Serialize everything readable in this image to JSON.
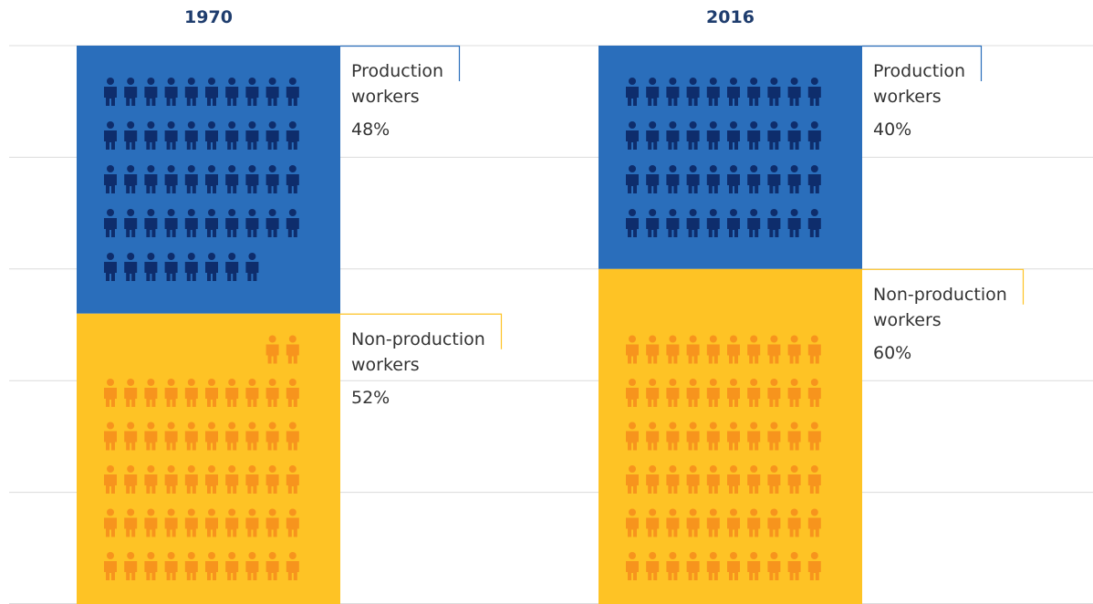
{
  "chart_data": {
    "type": "pictogram",
    "categories": [
      "1970",
      "2016"
    ],
    "series": [
      {
        "name": "Production workers",
        "color": "#2a6ebb",
        "icon_color": "#0e2d6c",
        "values": [
          48,
          40
        ],
        "value_labels": [
          "48%",
          "40%"
        ]
      },
      {
        "name": "Non-production workers",
        "color": "#fec325",
        "icon_color": "#f7941d",
        "values": [
          52,
          60
        ],
        "value_labels": [
          "52%",
          "60%"
        ]
      }
    ],
    "ylim": [
      0,
      100
    ],
    "yticks": [
      0,
      20,
      40,
      60,
      80,
      100
    ],
    "grid": true
  }
}
